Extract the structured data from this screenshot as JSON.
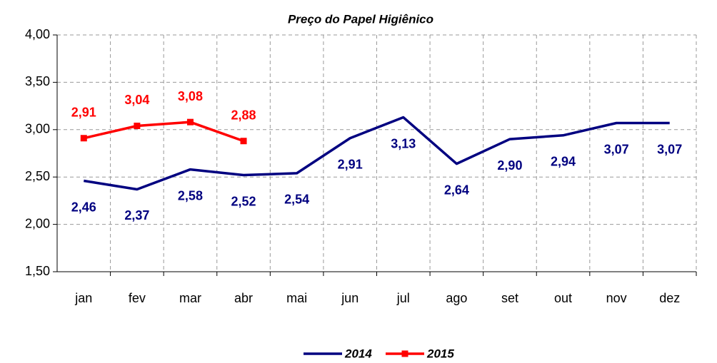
{
  "chart_data": {
    "type": "line",
    "title": "Preço do Papel Higiênico",
    "categories": [
      "jan",
      "fev",
      "mar",
      "abr",
      "mai",
      "jun",
      "jul",
      "ago",
      "set",
      "out",
      "nov",
      "dez"
    ],
    "series": [
      {
        "name": "2014",
        "color": "#000080",
        "marker": false,
        "values": [
          2.46,
          2.37,
          2.58,
          2.52,
          2.54,
          2.91,
          3.13,
          2.64,
          2.9,
          2.94,
          3.07,
          3.07
        ],
        "value_labels": [
          "2,46",
          "2,37",
          "2,58",
          "2,52",
          "2,54",
          "2,91",
          "3,13",
          "2,64",
          "2,90",
          "2,94",
          "3,07",
          "3,07"
        ]
      },
      {
        "name": "2015",
        "color": "#ff0000",
        "marker": true,
        "values": [
          2.91,
          3.04,
          3.08,
          2.88,
          null,
          null,
          null,
          null,
          null,
          null,
          null,
          null
        ],
        "value_labels": [
          "2,91",
          "3,04",
          "3,08",
          "2,88",
          null,
          null,
          null,
          null,
          null,
          null,
          null,
          null
        ]
      }
    ],
    "ylim": [
      1.5,
      4.0
    ],
    "yticks": [
      {
        "value": 1.5,
        "label": "1,50"
      },
      {
        "value": 2.0,
        "label": "2,00"
      },
      {
        "value": 2.5,
        "label": "2,50"
      },
      {
        "value": 3.0,
        "label": "3,00"
      },
      {
        "value": 3.5,
        "label": "3,50"
      },
      {
        "value": 4.0,
        "label": "4,00"
      }
    ],
    "grid": true,
    "legend": "bottom"
  }
}
